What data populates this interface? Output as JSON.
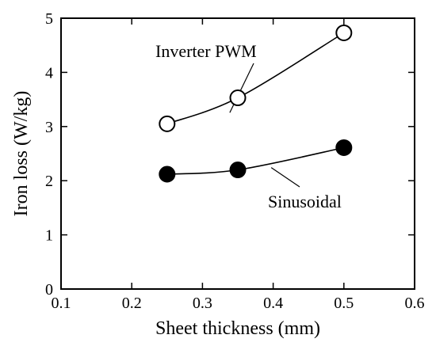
{
  "chart_data": {
    "type": "line",
    "title": "",
    "xlabel": "Sheet thickness (mm)",
    "ylabel": "Iron loss (W/kg)",
    "xlim": [
      0.1,
      0.6
    ],
    "ylim": [
      0,
      5
    ],
    "x_ticks": [
      "0.1",
      "0.2",
      "0.3",
      "0.4",
      "0.5",
      "0.6"
    ],
    "y_ticks": [
      "0",
      "1",
      "2",
      "3",
      "4",
      "5"
    ],
    "grid": false,
    "legend": "inline labels",
    "series": [
      {
        "name": "Inverter PWM",
        "marker": "open-circle",
        "color": "#000000",
        "x": [
          0.25,
          0.35,
          0.5
        ],
        "y": [
          3.05,
          3.53,
          4.73
        ]
      },
      {
        "name": "Sinusoidal",
        "marker": "filled-circle",
        "color": "#000000",
        "x": [
          0.25,
          0.35,
          0.5
        ],
        "y": [
          2.12,
          2.2,
          2.61
        ]
      }
    ]
  }
}
